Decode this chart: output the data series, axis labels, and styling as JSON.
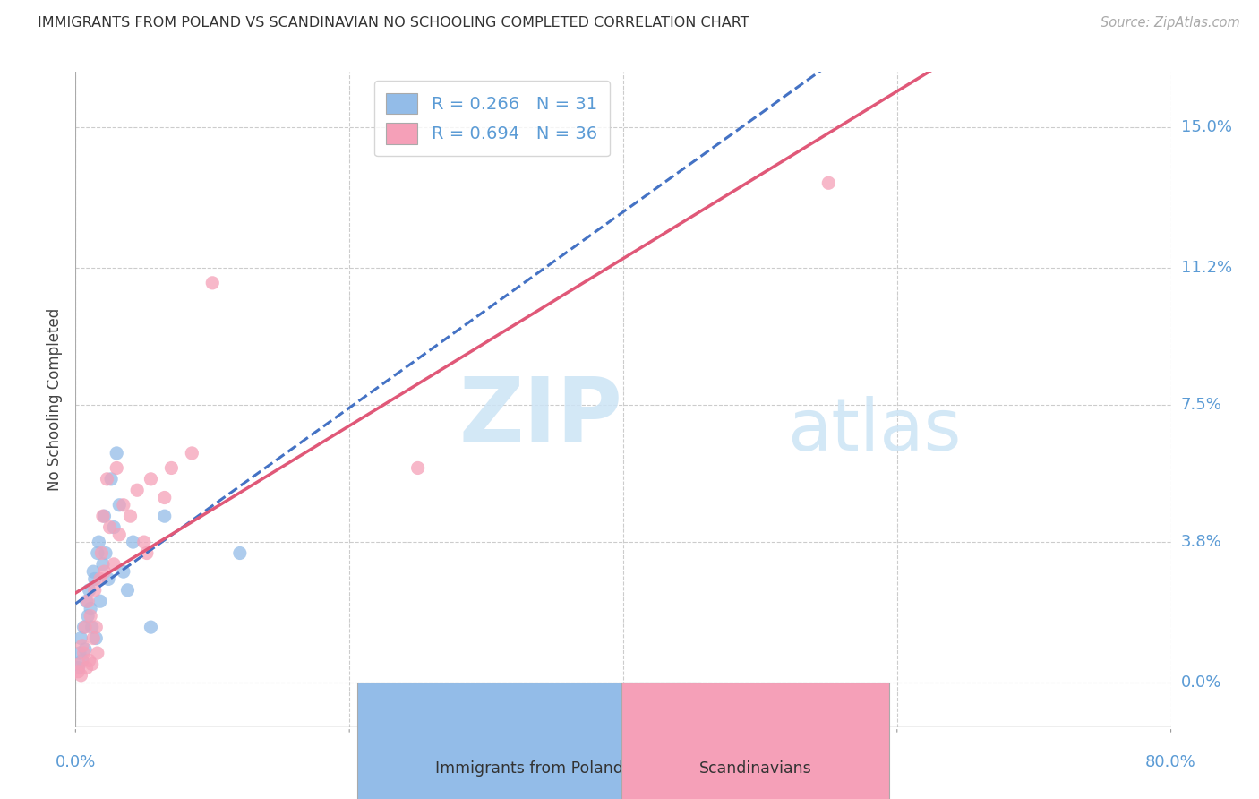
{
  "title": "IMMIGRANTS FROM POLAND VS SCANDINAVIAN NO SCHOOLING COMPLETED CORRELATION CHART",
  "source": "Source: ZipAtlas.com",
  "ylabel": "No Schooling Completed",
  "ylabel_ticks": [
    "0.0%",
    "3.8%",
    "7.5%",
    "11.2%",
    "15.0%"
  ],
  "ylabel_tick_vals": [
    0.0,
    3.8,
    7.5,
    11.2,
    15.0
  ],
  "xlim": [
    0.0,
    80.0
  ],
  "ylim": [
    -1.2,
    16.5
  ],
  "legend_label1": "Immigrants from Poland",
  "legend_label2": "Scandinavians",
  "r1": "0.266",
  "n1": "31",
  "r2": "0.694",
  "n2": "36",
  "color1": "#93bce8",
  "color2": "#f5a0b8",
  "line1_color": "#4472c4",
  "line2_color": "#e05878",
  "grid_color": "#cccccc",
  "poland_x": [
    0.2,
    0.3,
    0.4,
    0.5,
    0.6,
    0.7,
    0.8,
    0.9,
    1.0,
    1.1,
    1.2,
    1.3,
    1.4,
    1.5,
    1.6,
    1.7,
    1.8,
    2.0,
    2.1,
    2.2,
    2.4,
    2.6,
    2.8,
    3.0,
    3.2,
    3.5,
    3.8,
    4.2,
    5.5,
    6.5,
    12.0
  ],
  "poland_y": [
    0.4,
    0.8,
    1.2,
    0.6,
    1.5,
    0.9,
    2.2,
    1.8,
    2.5,
    2.0,
    1.5,
    3.0,
    2.8,
    1.2,
    3.5,
    3.8,
    2.2,
    3.2,
    4.5,
    3.5,
    2.8,
    5.5,
    4.2,
    6.2,
    4.8,
    3.0,
    2.5,
    3.8,
    1.5,
    4.5,
    3.5
  ],
  "scand_x": [
    0.2,
    0.3,
    0.4,
    0.5,
    0.6,
    0.7,
    0.8,
    0.9,
    1.0,
    1.1,
    1.2,
    1.3,
    1.4,
    1.5,
    1.6,
    1.8,
    1.9,
    2.0,
    2.1,
    2.3,
    2.5,
    2.8,
    3.0,
    3.2,
    3.5,
    4.0,
    4.5,
    5.0,
    5.5,
    6.5,
    7.0,
    8.5,
    10.0,
    55.0,
    25.0,
    5.2
  ],
  "scand_y": [
    0.3,
    0.5,
    0.2,
    1.0,
    0.8,
    1.5,
    0.4,
    2.2,
    0.6,
    1.8,
    0.5,
    1.2,
    2.5,
    1.5,
    0.8,
    2.8,
    3.5,
    4.5,
    3.0,
    5.5,
    4.2,
    3.2,
    5.8,
    4.0,
    4.8,
    4.5,
    5.2,
    3.8,
    5.5,
    5.0,
    5.8,
    6.2,
    10.8,
    13.5,
    5.8,
    3.5
  ]
}
